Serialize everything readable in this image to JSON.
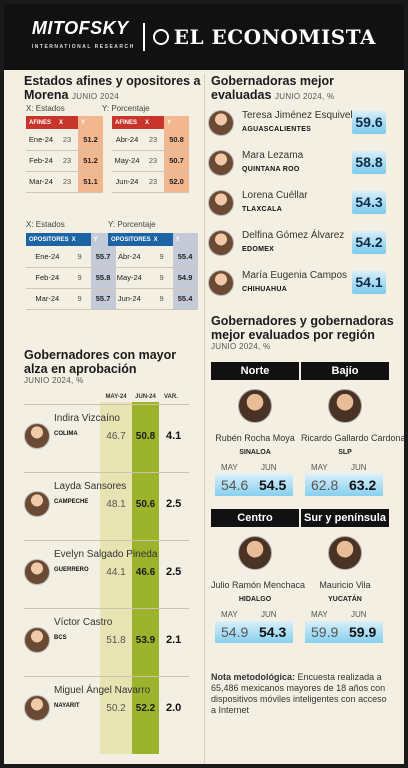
{
  "header": {
    "brand_left": "MITOFSKY",
    "brand_left_sub": "INTERNATIONAL RESEARCH",
    "brand_right": "EL ECONOMISTA"
  },
  "afines": {
    "title": "Estados afines y opositores a Morena",
    "subtitle": "JUNIO 2024",
    "x_label": "X: Estados",
    "y_label": "Y: Porcentaje",
    "header_left": [
      "AFINES",
      "X",
      "Y"
    ],
    "header_right": [
      "AFINES",
      "X",
      "Y"
    ],
    "rows_left": [
      [
        "Ene-24",
        "23",
        "51.2"
      ],
      [
        "Feb-24",
        "23",
        "51.2"
      ],
      [
        "Mar-24",
        "23",
        "51.1"
      ]
    ],
    "rows_right": [
      [
        "Abr-24",
        "23",
        "50.8"
      ],
      [
        "May-24",
        "23",
        "50.7"
      ],
      [
        "Jun-24",
        "23",
        "52.0"
      ]
    ]
  },
  "opositores": {
    "x_label": "X: Estados",
    "y_label": "Y: Porcentaje",
    "header_left": [
      "OPOSITORES",
      "X",
      "Y"
    ],
    "header_right": [
      "OPOSITORES",
      "X",
      "Y"
    ],
    "rows_left": [
      [
        "Ene-24",
        "9",
        "55.7"
      ],
      [
        "Feb-24",
        "9",
        "55.8"
      ],
      [
        "Mar-24",
        "9",
        "55.7"
      ]
    ],
    "rows_right": [
      [
        "Abr-24",
        "9",
        "55.4"
      ],
      [
        "May-24",
        "9",
        "54.9"
      ],
      [
        "Jun-24",
        "9",
        "55.4"
      ]
    ]
  },
  "alza": {
    "title": "Gobernadores con mayor alza en aprobación",
    "subtitle": "JUNIO 2024, %",
    "col_may": "MAY-24",
    "col_jun": "JUN-24",
    "col_var": "VAR.",
    "rows": [
      {
        "name": "Indira Vizcaíno",
        "state": "COLIMA",
        "may": "46.7",
        "jun": "50.8",
        "var": "4.1"
      },
      {
        "name": "Layda Sansores",
        "state": "CAMPECHE",
        "may": "48.1",
        "jun": "50.6",
        "var": "2.5"
      },
      {
        "name": "Evelyn Salgado Pineda",
        "state": "GUERRERO",
        "may": "44.1",
        "jun": "46.6",
        "var": "2.5"
      },
      {
        "name": "Víctor Castro",
        "state": "BCS",
        "may": "51.8",
        "jun": "53.9",
        "var": "2.1"
      },
      {
        "name": "Miguel Ángel Navarro",
        "state": "NAYARIT",
        "may": "50.2",
        "jun": "52.2",
        "var": "2.0"
      }
    ]
  },
  "gobernadoras": {
    "title": "Gobernadoras mejor evaluadas",
    "subtitle": "JUNIO 2024, %",
    "rows": [
      {
        "name": "Teresa Jiménez Esquivel",
        "state": "AGUASCALIENTES",
        "score": "59.6"
      },
      {
        "name": "Mara Lezama",
        "state": "QUINTANA ROO",
        "score": "58.8"
      },
      {
        "name": "Lorena Cuéllar",
        "state": "TLAXCALA",
        "score": "54.3"
      },
      {
        "name": "Delfina Gómez Álvarez",
        "state": "EDOMEX",
        "score": "54.2"
      },
      {
        "name": "María Eugenia Campos",
        "state": "CHIHUAHUA",
        "score": "54.1"
      }
    ]
  },
  "region": {
    "title": "Gobernadores y gobernadoras mejor evaluados por región",
    "subtitle": "JUNIO 2024, %",
    "may_label": "MAY",
    "jun_label": "JUN",
    "regions": [
      {
        "region": "Norte",
        "name": "Rubén Rocha Moya",
        "state": "SINALOA",
        "may": "54.6",
        "jun": "54.5"
      },
      {
        "region": "Bajío",
        "name": "Ricardo Gallardo Cardona",
        "state": "SLP",
        "may": "62.8",
        "jun": "63.2"
      },
      {
        "region": "Centro",
        "name": "Julio Ramón Menchaca",
        "state": "HIDALGO",
        "may": "54.9",
        "jun": "54.3"
      },
      {
        "region": "Sur y península",
        "name": "Mauricio Vila",
        "state": "YUCATÁN",
        "may": "59.9",
        "jun": "59.9"
      }
    ]
  },
  "note": {
    "label": "Nota metodológica:",
    "text": "Encuesta realizada a 65,486 mexicanos mayores de 18 años con dispositivos móviles inteligentes con acceso a Internet"
  },
  "colors": {
    "afines": "#c8362b",
    "opositores": "#1d64a6",
    "jun_bar": "#9cb42c",
    "may_bar": "#e8e3b2"
  }
}
